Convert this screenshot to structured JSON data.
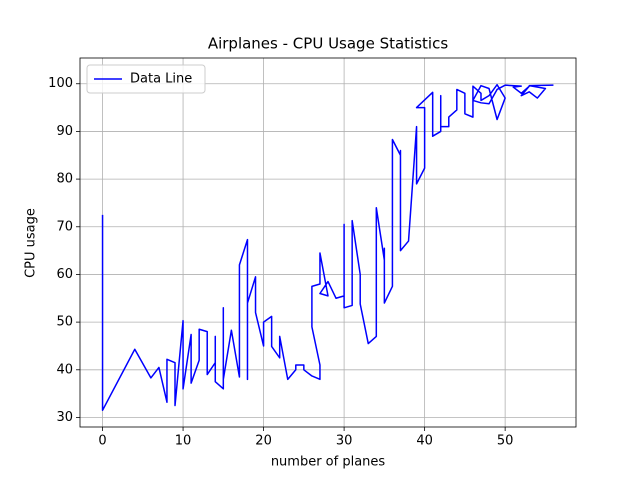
{
  "chart_data": {
    "type": "line",
    "title": "Airplanes - CPU Usage Statistics",
    "x_label": "number of planes",
    "y_label": "CPU usage",
    "x": [
      0,
      0,
      4,
      6,
      7,
      8,
      8,
      9,
      9,
      10,
      10,
      11,
      11,
      12,
      12,
      13,
      13,
      14,
      14,
      14,
      15,
      15,
      15,
      16,
      17,
      17,
      18,
      18,
      18,
      19,
      19,
      20,
      20,
      21,
      21,
      22,
      22,
      23,
      24,
      24,
      25,
      25,
      26,
      27,
      27,
      26,
      26,
      27,
      27,
      28,
      27,
      28,
      29,
      30,
      30,
      30,
      31,
      31,
      32,
      32,
      33,
      34,
      34,
      35,
      35,
      35,
      36,
      36,
      37,
      37,
      37,
      37,
      38,
      39,
      39,
      40,
      40,
      39,
      41,
      41,
      42,
      42,
      42,
      43,
      43,
      44,
      44,
      45,
      45,
      46,
      46,
      47,
      47,
      48,
      49,
      50,
      49,
      48,
      47,
      46,
      47,
      48,
      49,
      50,
      52,
      51,
      52,
      53,
      52,
      53,
      54,
      55,
      53,
      56
    ],
    "series": [
      {
        "name": "Data Line",
        "color": "#0000ff",
        "values": [
          72.5,
          31.5,
          44.3,
          38.3,
          40.5,
          33.2,
          42.2,
          41.5,
          32.5,
          50.3,
          36,
          47.4,
          37.2,
          42,
          48.5,
          48,
          39,
          41.5,
          47,
          37.5,
          36,
          53,
          38,
          48.3,
          38.5,
          62,
          67.3,
          38,
          54,
          59.5,
          52,
          45,
          50,
          51.2,
          44.9,
          42.5,
          47,
          38,
          40,
          41,
          41,
          40,
          38.7,
          38,
          41,
          49,
          57.5,
          58,
          64.5,
          55.5,
          56,
          58.5,
          55,
          55.5,
          70.5,
          53,
          53.5,
          71.3,
          60,
          53.8,
          45.5,
          47,
          74,
          63,
          65.5,
          54,
          57.5,
          88.3,
          85,
          76,
          86,
          65,
          67,
          91,
          79,
          82.3,
          95,
          95,
          98.2,
          89,
          90,
          97.5,
          91,
          91,
          93,
          94.5,
          98.8,
          98,
          93.7,
          93,
          99.5,
          98,
          96.5,
          97.5,
          99.8,
          97,
          92.5,
          99,
          99.6,
          96.5,
          96,
          95.8,
          98.8,
          99.7,
          99.5,
          99.3,
          98,
          99.5,
          97.5,
          98.3,
          97,
          99,
          99.6,
          99.7
        ]
      }
    ],
    "xlim": [
      -2.8,
      58.8
    ],
    "xticks": [
      0,
      10,
      20,
      30,
      40,
      50
    ],
    "ylim": [
      28,
      105.4
    ],
    "yticks": [
      30,
      40,
      50,
      60,
      70,
      80,
      90,
      100
    ],
    "grid": true,
    "legend": "upper-left"
  }
}
